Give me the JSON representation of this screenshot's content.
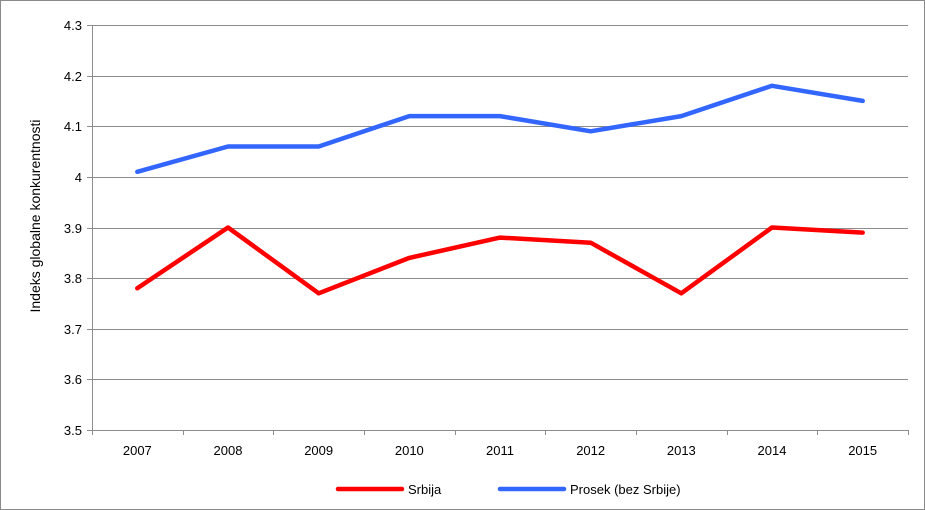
{
  "chart_data": {
    "type": "line",
    "title": "",
    "xlabel": "",
    "ylabel": "Indeks globalne konkurentnosti",
    "categories": [
      "2007",
      "2008",
      "2009",
      "2010",
      "2011",
      "2012",
      "2013",
      "2014",
      "2015"
    ],
    "ylim": [
      3.5,
      4.3
    ],
    "yticks": [
      "3.5",
      "3.6",
      "3.7",
      "3.8",
      "3.9",
      "4",
      "4.1",
      "4.2",
      "4.3"
    ],
    "grid": true,
    "legend_position": "bottom",
    "series": [
      {
        "name": "Srbija",
        "color": "#ff0000",
        "values": [
          3.78,
          3.9,
          3.77,
          3.84,
          3.88,
          3.87,
          3.77,
          3.9,
          3.89
        ]
      },
      {
        "name": "Prosek (bez Srbije)",
        "color": "#3366ff",
        "values": [
          4.01,
          4.06,
          4.06,
          4.12,
          4.12,
          4.09,
          4.12,
          4.18,
          4.15
        ]
      }
    ]
  }
}
